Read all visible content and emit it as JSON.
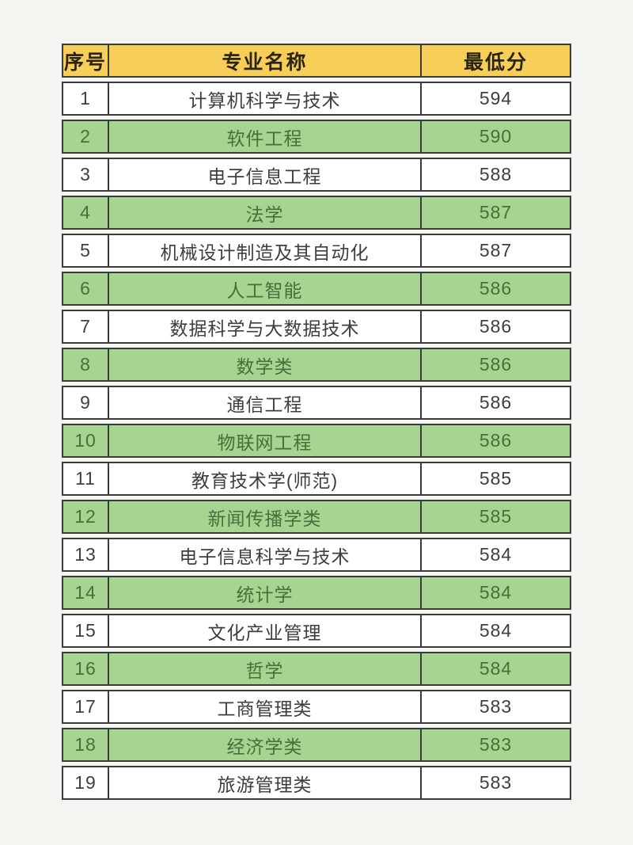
{
  "theme": {
    "page_bg": "#f4f4f1",
    "header_bg": "#f6ce58",
    "header_text": "#2b2517",
    "row_bg": "#ffffff",
    "row_text": "#3e3e3e",
    "highlight_bg": "#a8d492",
    "highlight_text": "#44703a",
    "border": "#3b3b3b"
  },
  "table": {
    "columns": [
      {
        "label": "序号"
      },
      {
        "label": "专业名称"
      },
      {
        "label": "最低分"
      }
    ],
    "rows": [
      {
        "index": "1",
        "major": "计算机科学与技术",
        "score": "594",
        "highlight": false
      },
      {
        "index": "2",
        "major": "软件工程",
        "score": "590",
        "highlight": true
      },
      {
        "index": "3",
        "major": "电子信息工程",
        "score": "588",
        "highlight": false
      },
      {
        "index": "4",
        "major": "法学",
        "score": "587",
        "highlight": true
      },
      {
        "index": "5",
        "major": "机械设计制造及其自动化",
        "score": "587",
        "highlight": false
      },
      {
        "index": "6",
        "major": "人工智能",
        "score": "586",
        "highlight": true
      },
      {
        "index": "7",
        "major": "数据科学与大数据技术",
        "score": "586",
        "highlight": false
      },
      {
        "index": "8",
        "major": "数学类",
        "score": "586",
        "highlight": true
      },
      {
        "index": "9",
        "major": "通信工程",
        "score": "586",
        "highlight": false
      },
      {
        "index": "10",
        "major": "物联网工程",
        "score": "586",
        "highlight": true
      },
      {
        "index": "11",
        "major": "教育技术学(师范)",
        "score": "585",
        "highlight": false
      },
      {
        "index": "12",
        "major": "新闻传播学类",
        "score": "585",
        "highlight": true
      },
      {
        "index": "13",
        "major": "电子信息科学与技术",
        "score": "584",
        "highlight": false
      },
      {
        "index": "14",
        "major": "统计学",
        "score": "584",
        "highlight": true
      },
      {
        "index": "15",
        "major": "文化产业管理",
        "score": "584",
        "highlight": false
      },
      {
        "index": "16",
        "major": "哲学",
        "score": "584",
        "highlight": true
      },
      {
        "index": "17",
        "major": "工商管理类",
        "score": "583",
        "highlight": false
      },
      {
        "index": "18",
        "major": "经济学类",
        "score": "583",
        "highlight": true
      },
      {
        "index": "19",
        "major": "旅游管理类",
        "score": "583",
        "highlight": false
      }
    ]
  }
}
